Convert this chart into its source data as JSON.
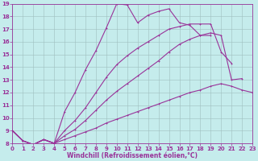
{
  "bg_color": "#c5ecec",
  "line_color": "#993399",
  "grid_color": "#9fbfbf",
  "xlabel": "Windchill (Refroidissement éolien,°C)",
  "xlim": [
    0,
    23
  ],
  "ylim": [
    8,
    19
  ],
  "xticks": [
    0,
    1,
    2,
    3,
    4,
    5,
    6,
    7,
    8,
    9,
    10,
    11,
    12,
    13,
    14,
    15,
    16,
    17,
    18,
    19,
    20,
    21,
    22,
    23
  ],
  "yticks": [
    8,
    9,
    10,
    11,
    12,
    13,
    14,
    15,
    16,
    17,
    18,
    19
  ],
  "curves": [
    {
      "x": [
        0,
        1,
        2,
        3,
        4,
        5,
        6,
        7,
        8,
        9,
        10,
        11,
        12,
        13,
        14,
        15,
        16,
        17,
        18,
        19
      ],
      "y": [
        9.0,
        8.2,
        7.9,
        8.3,
        8.0,
        10.5,
        12.0,
        13.8,
        15.3,
        17.1,
        19.0,
        18.9,
        17.5,
        18.1,
        18.4,
        18.6,
        17.5,
        17.3,
        16.5,
        16.5
      ]
    },
    {
      "x": [
        0,
        1,
        2,
        3,
        4,
        5,
        6,
        7,
        8,
        9,
        10,
        11,
        12,
        13,
        14,
        15,
        16,
        17,
        18,
        19,
        20,
        21
      ],
      "y": [
        9.0,
        8.2,
        7.9,
        8.3,
        8.0,
        9.0,
        9.8,
        10.8,
        12.0,
        13.2,
        14.2,
        14.9,
        15.5,
        16.0,
        16.5,
        17.0,
        17.2,
        17.4,
        17.4,
        17.4,
        15.2,
        14.3
      ]
    },
    {
      "x": [
        0,
        1,
        2,
        3,
        4,
        5,
        6,
        7,
        8,
        9,
        10,
        11,
        12,
        13,
        14,
        15,
        16,
        17,
        18,
        19,
        20,
        21,
        22
      ],
      "y": [
        9.0,
        8.2,
        7.9,
        8.3,
        8.0,
        8.6,
        9.1,
        9.8,
        10.6,
        11.4,
        12.1,
        12.7,
        13.3,
        13.9,
        14.5,
        15.2,
        15.8,
        16.2,
        16.5,
        16.7,
        16.5,
        13.0,
        13.1
      ]
    },
    {
      "x": [
        0,
        1,
        2,
        3,
        4,
        5,
        6,
        7,
        8,
        9,
        10,
        11,
        12,
        13,
        14,
        15,
        16,
        17,
        18,
        19,
        20,
        21,
        22,
        23
      ],
      "y": [
        9.0,
        8.2,
        7.9,
        8.3,
        8.0,
        8.3,
        8.6,
        8.9,
        9.2,
        9.6,
        9.9,
        10.2,
        10.5,
        10.8,
        11.1,
        11.4,
        11.7,
        12.0,
        12.2,
        12.5,
        12.7,
        12.5,
        12.2,
        12.0
      ]
    }
  ],
  "title_fontsize": 6,
  "tick_fontsize": 5,
  "xlabel_fontsize": 5.5,
  "linewidth": 0.8,
  "markersize": 2.0,
  "markeredgewidth": 0.7
}
